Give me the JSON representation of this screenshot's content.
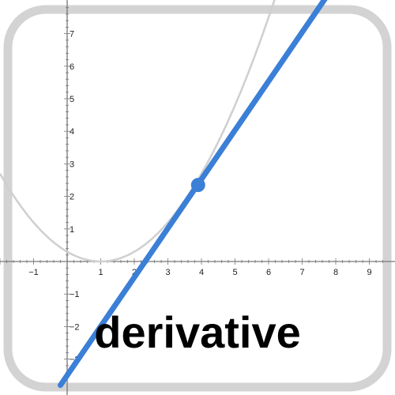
{
  "colors": {
    "frame": "#d3d3d3",
    "axis": "#777777",
    "curve": "#cfcfcf",
    "tangent": "#3b7fd6",
    "text": "#000000"
  },
  "icon": {
    "name": "derivative-app-icon",
    "caption": "derivative"
  },
  "chart_data": {
    "type": "line",
    "xlim": [
      -2,
      9.5
    ],
    "ylim": [
      -3.5,
      7.9
    ],
    "grid": false,
    "x_ticks": [
      "−1",
      "1",
      "2",
      "3",
      "4",
      "5",
      "6",
      "7",
      "8",
      "9"
    ],
    "y_ticks": [
      "−3",
      "−2",
      "−1",
      "1",
      "2",
      "3",
      "4",
      "5",
      "6",
      "7"
    ],
    "series": [
      {
        "role": "curve",
        "x": [
          -2,
          -1,
          0,
          1,
          2,
          3,
          4,
          5,
          6,
          6.6
        ],
        "y": [
          2.67,
          1.2,
          0.3,
          0.0,
          0.3,
          1.2,
          2.7,
          4.8,
          7.5,
          9.4
        ]
      },
      {
        "role": "tangent",
        "x": [
          -0.2,
          7.7
        ],
        "y": [
          -3.8,
          8.1
        ]
      }
    ],
    "point": {
      "x": 3.9,
      "y": 2.35
    }
  }
}
